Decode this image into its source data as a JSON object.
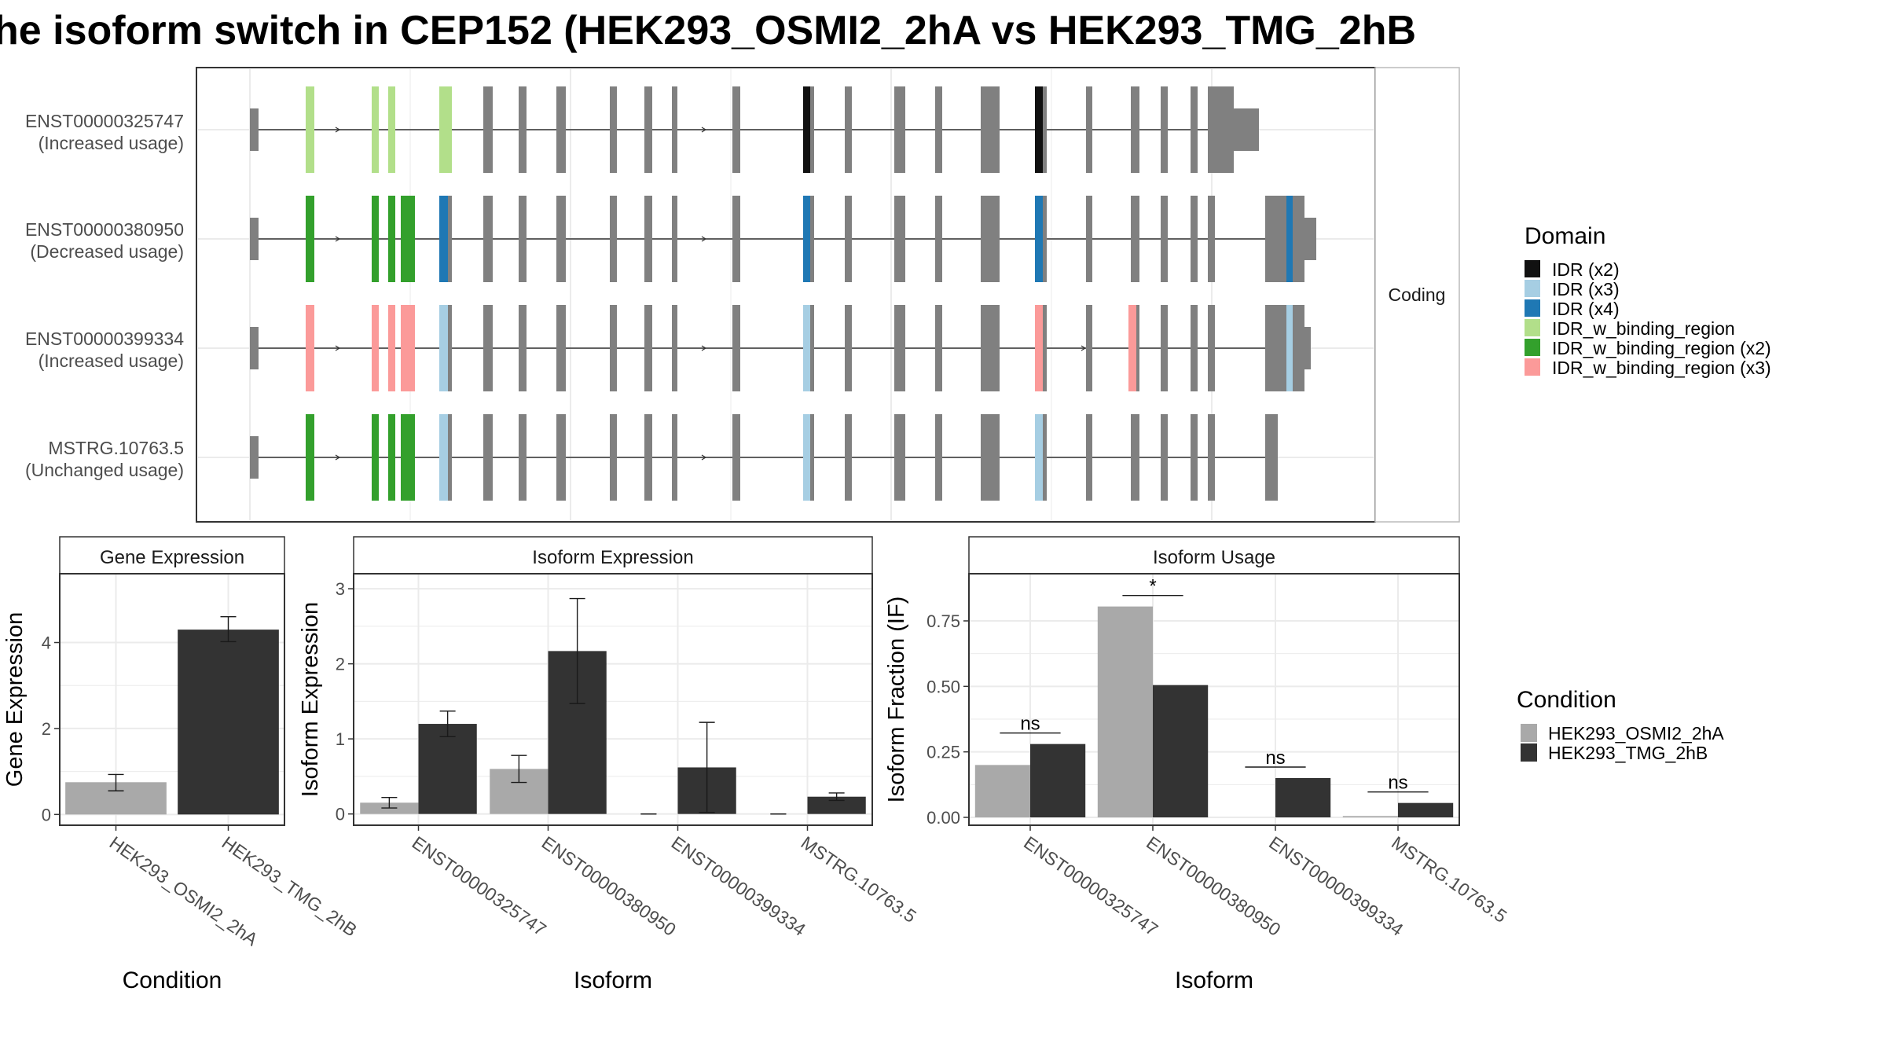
{
  "title": "he isoform switch in CEP152 (HEK293_OSMI2_2hA vs HEK293_TMG_2hB",
  "colors": {
    "condition_a": "#a9a9a9",
    "condition_b": "#333333",
    "exon": "#808080",
    "panel_border": "#333333",
    "grid": "#ebebeb",
    "strip": "#ffffff"
  },
  "structure": {
    "strip_label": "Coding",
    "transcripts": [
      {
        "id": "ENST00000325747",
        "usage": "(Increased usage)"
      },
      {
        "id": "ENST00000380950",
        "usage": "(Decreased usage)"
      },
      {
        "id": "ENST00000399334",
        "usage": "(Increased usage)"
      },
      {
        "id": "MSTRG.10763.5",
        "usage": "(Unchanged usage)"
      }
    ]
  },
  "domain_legend": {
    "title": "Domain",
    "items": [
      {
        "label": "IDR (x2)",
        "color": "#111111"
      },
      {
        "label": "IDR (x3)",
        "color": "#a6cee3"
      },
      {
        "label": "IDR (x4)",
        "color": "#1f78b4"
      },
      {
        "label": "IDR_w_binding_region",
        "color": "#b2df8a"
      },
      {
        "label": "IDR_w_binding_region (x2)",
        "color": "#33a02c"
      },
      {
        "label": "IDR_w_binding_region (x3)",
        "color": "#fb9a99"
      }
    ]
  },
  "condition_legend": {
    "title": "Condition",
    "items": [
      {
        "label": "HEK293_OSMI2_2hA",
        "color": "#a9a9a9"
      },
      {
        "label": "HEK293_TMG_2hB",
        "color": "#333333"
      }
    ]
  },
  "chart_data": [
    {
      "type": "bar",
      "title": "Gene Expression",
      "xlabel": "Condition",
      "ylabel": "Gene Expression",
      "categories": [
        "HEK293_OSMI2_2hA",
        "HEK293_TMG_2hB"
      ],
      "values": [
        0.75,
        4.3
      ],
      "err_low": [
        0.55,
        4.02
      ],
      "err_high": [
        0.93,
        4.6
      ],
      "ylim": [
        -0.25,
        5.6
      ],
      "yticks": [
        0,
        2,
        4
      ],
      "ytick_labels": [
        "0",
        "2",
        "4"
      ]
    },
    {
      "type": "bar",
      "title": "Isoform Expression",
      "xlabel": "Isoform",
      "ylabel": "Isoform Expression",
      "categories": [
        "ENST00000325747",
        "ENST00000380950",
        "ENST00000399334",
        "MSTRG.10763.5"
      ],
      "series": [
        {
          "name": "HEK293_OSMI2_2hA",
          "values": [
            0.15,
            0.6,
            0.0,
            0.0
          ],
          "err_low": [
            0.08,
            0.42,
            0.0,
            0.0
          ],
          "err_high": [
            0.22,
            0.78,
            0.0,
            0.0
          ]
        },
        {
          "name": "HEK293_TMG_2hB",
          "values": [
            1.2,
            2.17,
            0.62,
            0.23
          ],
          "err_low": [
            1.03,
            1.47,
            0.02,
            0.18
          ],
          "err_high": [
            1.37,
            2.87,
            1.22,
            0.28
          ]
        }
      ],
      "ylim": [
        -0.15,
        3.2
      ],
      "yticks": [
        0,
        1,
        2,
        3
      ],
      "ytick_labels": [
        "0",
        "1",
        "2",
        "3"
      ]
    },
    {
      "type": "bar",
      "title": "Isoform Usage",
      "xlabel": "Isoform",
      "ylabel": "Isoform Fraction (IF)",
      "categories": [
        "ENST00000325747",
        "ENST00000380950",
        "ENST00000399334",
        "MSTRG.10763.5"
      ],
      "series": [
        {
          "name": "HEK293_OSMI2_2hA",
          "values": [
            0.2,
            0.805,
            0.0,
            0.005
          ]
        },
        {
          "name": "HEK293_TMG_2hB",
          "values": [
            0.28,
            0.505,
            0.15,
            0.055
          ]
        }
      ],
      "significance": [
        "ns",
        "*",
        "ns",
        "ns"
      ],
      "ylim": [
        -0.03,
        0.93
      ],
      "yticks": [
        0,
        0.25,
        0.5,
        0.75
      ],
      "ytick_labels": [
        "0.00",
        "0.25",
        "0.50",
        "0.75"
      ]
    }
  ]
}
